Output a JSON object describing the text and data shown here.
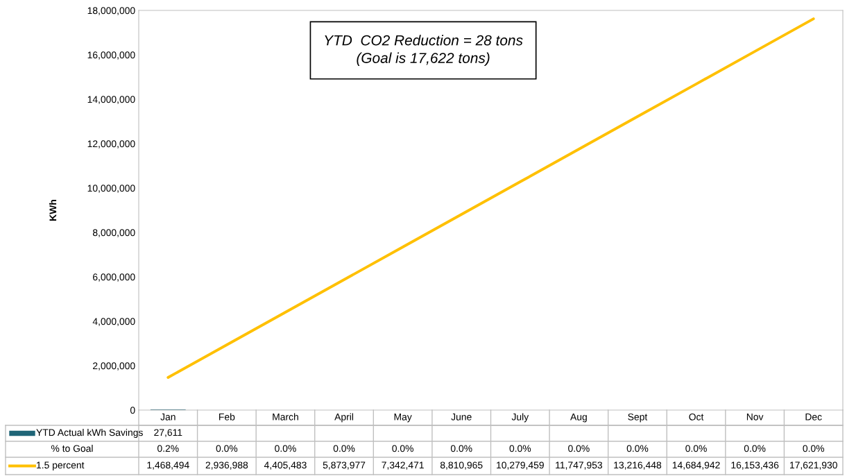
{
  "chart_data": {
    "type": "line",
    "ylabel": "KWh",
    "categories": [
      "Jan",
      "Feb",
      "March",
      "April",
      "May",
      "June",
      "July",
      "Aug",
      "Sept",
      "Oct",
      "Nov",
      "Dec"
    ],
    "series": [
      {
        "name": "YTD Actual kWh Savings",
        "type": "bar",
        "color": "#1f6577",
        "values": [
          27611,
          null,
          null,
          null,
          null,
          null,
          null,
          null,
          null,
          null,
          null,
          null
        ],
        "value_labels": [
          "27,611",
          null,
          null,
          null,
          null,
          null,
          null,
          null,
          null,
          null,
          null,
          null
        ]
      },
      {
        "name": "1.5 percent",
        "color": "#ffc000",
        "values": [
          1468494,
          2936988,
          4405483,
          5873977,
          7342471,
          8810965,
          10279459,
          11747953,
          13216448,
          14684942,
          16153436,
          17621930
        ],
        "value_labels": [
          "1,468,494",
          "2,936,988",
          "4,405,483",
          "5,873,977",
          "7,342,471",
          "8,810,965",
          "10,279,459",
          "11,747,953",
          "13,216,448",
          "14,684,942",
          "16,153,436",
          "17,621,930"
        ]
      }
    ],
    "legend": "bottom",
    "annotations": [
      "YTD  CO2 Reduction = 28 tons\n(Goal is 17,622 tons)",
      "% to Goal",
      "0.2%",
      "0.0%",
      "0.0%",
      "0.0%",
      "0.0%",
      "0.0%",
      "0.0%",
      "0.0%",
      "0.0%",
      "0.0%",
      "0.0%",
      "0.0%"
    ],
    "ylim": [
      0,
      18000000
    ],
    "yticks": [
      0,
      {
        "value": 2000000,
        "label": "2,000,000"
      },
      {
        "value": 4000000,
        "label": "4,000,000"
      },
      {
        "value": 6000000,
        "label": "6,000,000"
      },
      {
        "value": 8000000,
        "label": "8,000,000"
      },
      {
        "value": 10000000,
        "label": "10,000,000"
      },
      {
        "value": 12000000,
        "label": "12,000,000"
      },
      {
        "value": 14000000,
        "label": "14,000,000"
      },
      {
        "value": 16000000,
        "label": "16,000,000"
      },
      {
        "value": 18000000,
        "label": "18,000,000"
      }
    ],
    "grid": false
  }
}
